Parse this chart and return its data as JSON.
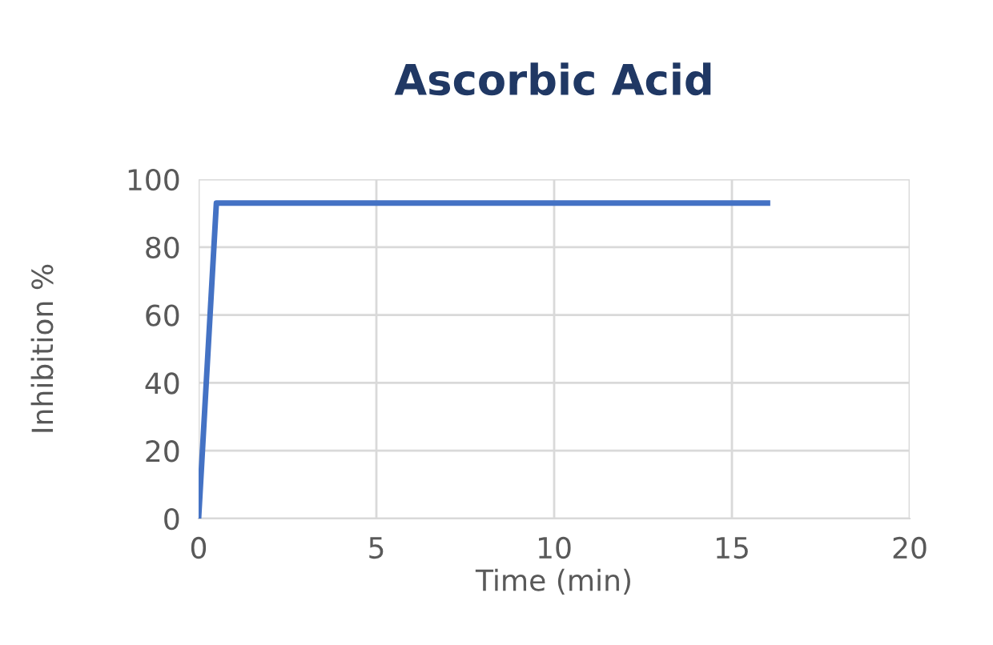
{
  "chart_data": {
    "type": "line",
    "title": "Ascorbic Acid",
    "xlabel": "Time (min)",
    "ylabel": "Inhibition %",
    "x": [
      0,
      0.5,
      16
    ],
    "series": [
      {
        "color": "#4472c4",
        "values": [
          0,
          93,
          93
        ]
      }
    ],
    "xlim": [
      0,
      20
    ],
    "xticks": [
      0,
      5,
      10,
      15,
      20
    ],
    "ylim": [
      0,
      100
    ],
    "yticks": [
      0,
      20,
      40,
      60,
      80,
      100
    ],
    "grid": true,
    "marker": "none",
    "line_style": "solid"
  }
}
